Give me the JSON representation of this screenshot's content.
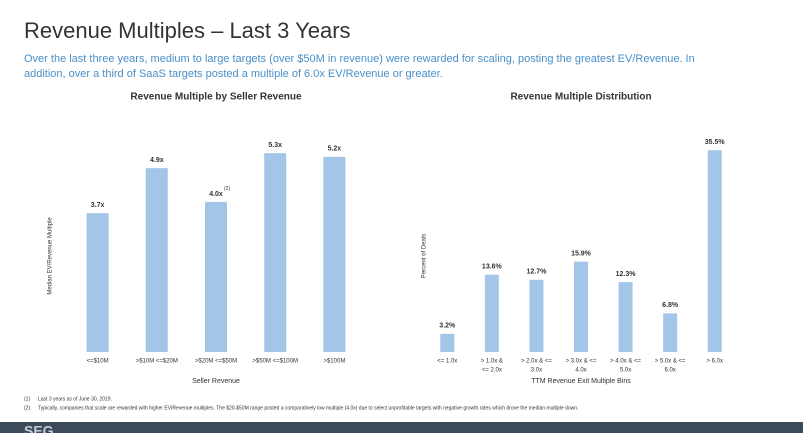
{
  "title": "Revenue Multiples – Last 3 Years",
  "subtitle": [
    "Over the last three years, medium to large targets (over $50M in revenue) were rewarded for scaling, posting the greatest EV/Revenue. In",
    "addition, over a third of SaaS targets posted a multiple of 6.0x EV/Revenue or greater."
  ],
  "chart_data": [
    {
      "type": "bar",
      "title": "Revenue Multiple by Seller Revenue",
      "x_label": "Seller Revenue",
      "y_label": "Median EV/Revenue Multiple",
      "categories": [
        [
          "<=$10M"
        ],
        [
          ">$10M <=$20M"
        ],
        [
          ">$20M <=$50M"
        ],
        [
          ">$50M <=$100M"
        ],
        [
          ">$100M"
        ]
      ],
      "values": [
        3.7,
        4.9,
        4.0,
        5.3,
        5.2
      ],
      "value_labels": [
        "3.7x",
        "4.9x",
        "4.0x",
        "5.3x",
        "5.2x"
      ],
      "annotations": [
        {
          "category": 2,
          "text": "(2)"
        }
      ],
      "color": "#a3c6e8",
      "ylim": [
        0,
        5.65
      ]
    },
    {
      "type": "bar",
      "title": "Revenue Multiple Distribution",
      "x_label": "TTM Revenue Exit Multiple Bins",
      "y_label": "Percent of Deals",
      "categories": [
        [
          "<= 1.0x"
        ],
        [
          "> 1.0x  &",
          "<= 2.0x"
        ],
        [
          "> 2.0x & <=",
          "3.0x"
        ],
        [
          "> 3.0x & <=",
          "4.0x"
        ],
        [
          "> 4.0x & <=",
          "5.0x"
        ],
        [
          "> 5.0x & <=",
          "6.0x"
        ],
        [
          "> 6.0x"
        ]
      ],
      "values": [
        3.2,
        13.6,
        12.7,
        15.9,
        12.3,
        6.8,
        35.5
      ],
      "value_labels": [
        "3.2%",
        "13.6%",
        "12.7%",
        "15.9%",
        "12.3%",
        "6.8%",
        "35.5%"
      ],
      "color": "#a3c6e8",
      "ylim": [
        0,
        37.3
      ]
    }
  ],
  "footnotes": [
    [
      "(1)",
      "Last 3 years as of June 30, 2019."
    ],
    [
      "(2)",
      "Typically, companies that scale are rewarded with higher EV/Revenue multiples. The $20-$50M range posted a comparatively low multiple (4.0x) due to select unprofitable targets with negative growth rates which drove the median multiple down."
    ]
  ],
  "logo": "SEG"
}
